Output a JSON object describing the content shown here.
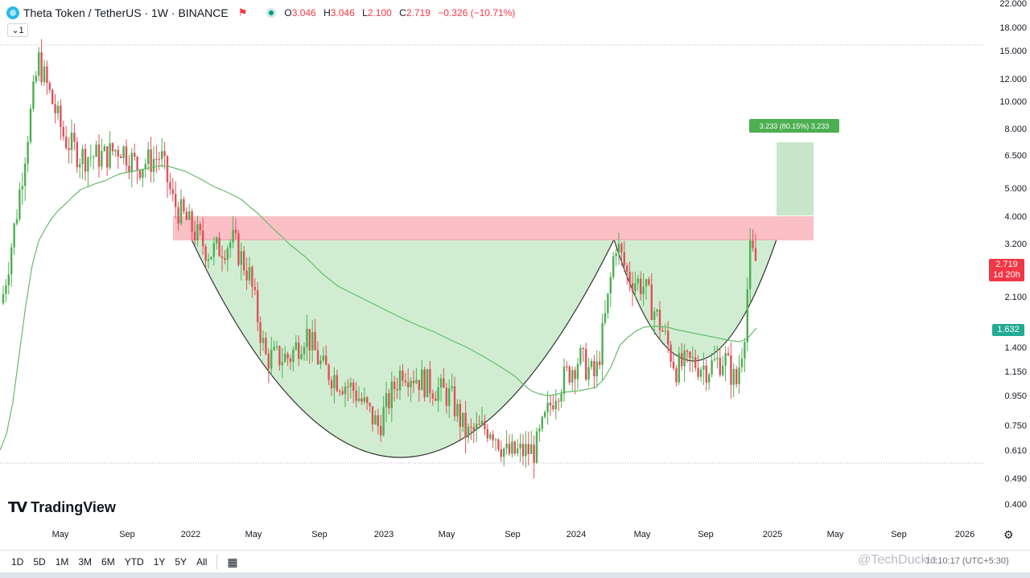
{
  "header": {
    "symbol_title": "Theta Token / TetherUS · 1W · BINANCE",
    "ohlc": [
      {
        "key": "O",
        "value": "3.046"
      },
      {
        "key": "H",
        "value": "3.046"
      },
      {
        "key": "L",
        "value": "2.100"
      },
      {
        "key": "C",
        "value": "2.719"
      }
    ],
    "change": "−0.326 (−10.71%)",
    "interval_toggle": "1"
  },
  "price_axis": {
    "labels": [
      "22.000",
      "18.000",
      "15.000",
      "12.000",
      "10.000",
      "8.000",
      "6.500",
      "5.000",
      "4.000",
      "3.200",
      "2.100",
      "1.400",
      "1.150",
      "0.950",
      "0.750",
      "0.610",
      "0.490",
      "0.400"
    ],
    "last_price": "2.719",
    "countdown": "1d 20h",
    "ma_value": "1.632"
  },
  "time_axis": {
    "labels": [
      "May",
      "Sep",
      "2022",
      "May",
      "Sep",
      "2023",
      "May",
      "Sep",
      "2024",
      "May",
      "Sep",
      "2025",
      "May",
      "Sep",
      "2026"
    ]
  },
  "ruler_label": "3.233 (80.15%) 3,233",
  "brand": "TradingView",
  "ranges": [
    "1D",
    "5D",
    "1M",
    "3M",
    "6M",
    "YTD",
    "1Y",
    "5Y",
    "All"
  ],
  "watermark": "@TechDuckie",
  "clock": "10:10:17 (UTC+5:30)",
  "icons": {
    "settings": "gear-icon",
    "calendar": "calendar-icon",
    "flag": "flag-icon"
  },
  "chart_data": {
    "type": "candlestick",
    "y_scale": "log",
    "ylim": [
      0.4,
      22
    ],
    "colors": {
      "up": "#4caf50",
      "down": "#e0505a",
      "ma": "#66bb6a",
      "resistance_zone": "#f9b9c0",
      "cup_fill": "#c8eac9",
      "target_box": "#c8e6c9"
    },
    "resistance_zone": [
      3.2,
      4.0
    ],
    "target_zone": [
      4.0,
      7.0
    ],
    "ruler_target": 3.233,
    "ma_last": 1.632,
    "last_close": 2.719,
    "series": [
      {
        "t": "2021-03",
        "o": 3.0,
        "c": 4.5
      },
      {
        "t": "2021-04",
        "o": 8.0,
        "c": 12.5
      },
      {
        "t": "2021-05",
        "o": 13.0,
        "c": 8.0
      },
      {
        "t": "2021-06",
        "o": 8.0,
        "c": 6.5
      },
      {
        "t": "2021-08",
        "o": 6.5,
        "c": 8.0
      },
      {
        "t": "2021-09",
        "o": 8.0,
        "c": 6.5
      },
      {
        "t": "2021-11",
        "o": 7.0,
        "c": 5.5
      },
      {
        "t": "2022-01",
        "o": 5.0,
        "c": 3.5
      },
      {
        "t": "2022-04",
        "o": 3.5,
        "c": 2.5
      },
      {
        "t": "2022-06",
        "o": 2.0,
        "c": 1.3
      },
      {
        "t": "2022-08",
        "o": 1.3,
        "c": 1.6
      },
      {
        "t": "2022-11",
        "o": 1.2,
        "c": 0.85
      },
      {
        "t": "2023-02",
        "o": 0.9,
        "c": 1.2
      },
      {
        "t": "2023-06",
        "o": 1.0,
        "c": 0.75
      },
      {
        "t": "2023-10",
        "o": 0.6,
        "c": 0.65
      },
      {
        "t": "2024-01",
        "o": 0.9,
        "c": 1.4
      },
      {
        "t": "2024-03",
        "o": 1.8,
        "c": 3.3
      },
      {
        "t": "2024-05",
        "o": 2.7,
        "c": 1.9
      },
      {
        "t": "2024-08",
        "o": 1.4,
        "c": 1.1
      },
      {
        "t": "2024-11",
        "o": 1.2,
        "c": 2.8
      }
    ]
  }
}
